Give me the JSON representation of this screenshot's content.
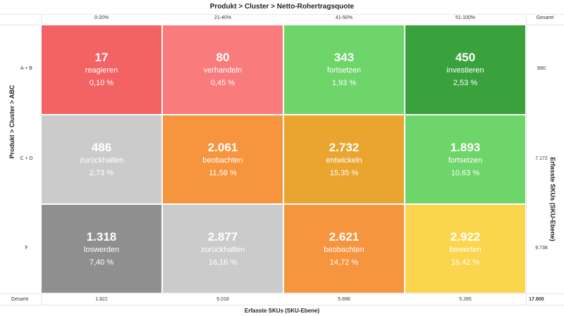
{
  "chart_data": {
    "type": "heatmap",
    "title": "Produkt > Cluster > Netto-Rohertragsquote",
    "xlabel": "Erfasste SKUs (SKU-Ebene)",
    "ylabel": "Produkt > Cluster > ABC",
    "y2label": "Erfasste SKUs (SKU-Ebene)",
    "columns": [
      "0-20%",
      "21-40%",
      "41-50%",
      "51-100%"
    ],
    "rows": [
      "A + B",
      "C + D",
      "F"
    ],
    "total_label": "Gesamt",
    "cells": [
      [
        {
          "count": "17",
          "action": "reagieren",
          "pct": "0,10 %",
          "color": "#f36364"
        },
        {
          "count": "80",
          "action": "verhandeln",
          "pct": "0,45 %",
          "color": "#f97b7c"
        },
        {
          "count": "343",
          "action": "fortsetzen",
          "pct": "1,93 %",
          "color": "#6dd569"
        },
        {
          "count": "450",
          "action": "investieren",
          "pct": "2,53 %",
          "color": "#3aa23d"
        }
      ],
      [
        {
          "count": "486",
          "action": "zurückhalten",
          "pct": "2,73 %",
          "color": "#cbcbcb"
        },
        {
          "count": "2.061",
          "action": "beobachten",
          "pct": "11,58 %",
          "color": "#f7953f"
        },
        {
          "count": "2.732",
          "action": "entwickeln",
          "pct": "15,35 %",
          "color": "#e9a530"
        },
        {
          "count": "1.893",
          "action": "fortsetzen",
          "pct": "10,63 %",
          "color": "#6dd569"
        }
      ],
      [
        {
          "count": "1.318",
          "action": "loswerden",
          "pct": "7,40 %",
          "color": "#8f8f8f"
        },
        {
          "count": "2.877",
          "action": "zurückhalten",
          "pct": "16,16 %",
          "color": "#cbcbcb"
        },
        {
          "count": "2.621",
          "action": "beobachten",
          "pct": "14,72 %",
          "color": "#f7953f"
        },
        {
          "count": "2.922",
          "action": "bewerten",
          "pct": "16,42 %",
          "color": "#fbd54e"
        }
      ]
    ],
    "row_totals": [
      "890",
      "7.172",
      "9.738"
    ],
    "column_totals": [
      "1.821",
      "5.018",
      "5.696",
      "5.265"
    ],
    "grand_total": "17.800"
  }
}
